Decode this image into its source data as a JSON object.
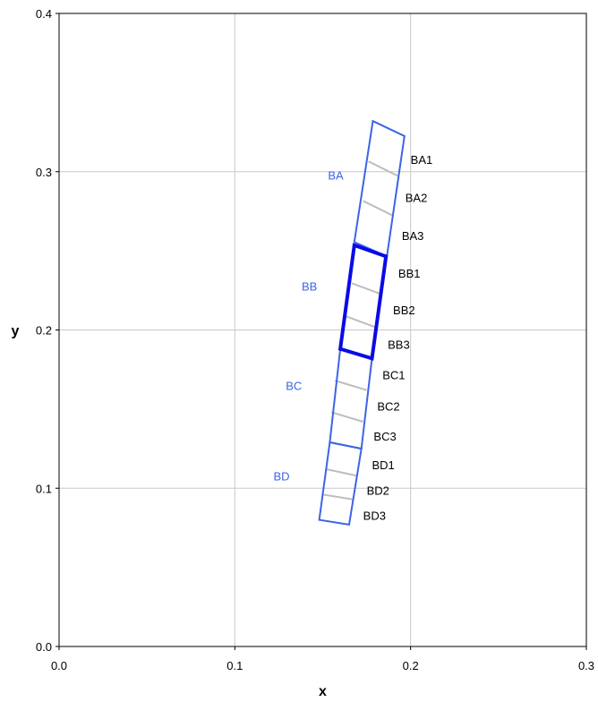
{
  "chart_data": {
    "type": "diagram-plot",
    "xlabel": "x",
    "ylabel": "y",
    "xlim": [
      0.0,
      0.3
    ],
    "ylim": [
      0.0,
      0.4
    ],
    "x_ticks": [
      "0.0",
      "0.1",
      "0.2",
      "0.3"
    ],
    "y_ticks": [
      "0.0",
      "0.1",
      "0.2",
      "0.3",
      "0.4"
    ],
    "grid": true,
    "colors": {
      "blue": "#3c64e6",
      "blue_bold": "#0a0ae6",
      "divider": "#bdbdbd",
      "grid": "#c8c8c8"
    },
    "groups": [
      {
        "name": "BA",
        "color": "#3c64e6",
        "label_pos": [
          0.153,
          0.295
        ],
        "bold": false,
        "outline": [
          [
            0.1785,
            0.332
          ],
          [
            0.1965,
            0.3225
          ],
          [
            0.1865,
            0.2465
          ],
          [
            0.168,
            0.2555
          ]
        ],
        "dividers": [
          [
            [
              0.176,
              0.3065
            ],
            [
              0.1925,
              0.2975
            ]
          ],
          [
            [
              0.173,
              0.2815
            ],
            [
              0.1895,
              0.2725
            ]
          ]
        ],
        "segments": [
          {
            "label": "BA1",
            "pos": [
              0.2,
              0.305
            ]
          },
          {
            "label": "BA2",
            "pos": [
              0.197,
              0.281
            ]
          },
          {
            "label": "BA3",
            "pos": [
              0.195,
              0.257
            ]
          }
        ]
      },
      {
        "name": "BB",
        "color": "#0a0ae6",
        "label_pos": [
          0.138,
          0.225
        ],
        "bold": true,
        "outline": [
          [
            0.168,
            0.2535
          ],
          [
            0.186,
            0.2465
          ],
          [
            0.178,
            0.182
          ],
          [
            0.16,
            0.188
          ]
        ],
        "dividers": [
          [
            [
              0.1665,
              0.2295
            ],
            [
              0.1835,
              0.2225
            ]
          ],
          [
            [
              0.1635,
              0.2085
            ],
            [
              0.1805,
              0.2015
            ]
          ]
        ],
        "segments": [
          {
            "label": "BB1",
            "pos": [
              0.193,
              0.233
            ]
          },
          {
            "label": "BB2",
            "pos": [
              0.19,
              0.21
            ]
          },
          {
            "label": "BB3",
            "pos": [
              0.187,
              0.188
            ]
          }
        ]
      },
      {
        "name": "BC",
        "color": "#3c64e6",
        "label_pos": [
          0.129,
          0.162
        ],
        "bold": false,
        "outline": [
          [
            0.16,
            0.188
          ],
          [
            0.178,
            0.182
          ],
          [
            0.172,
            0.125
          ],
          [
            0.154,
            0.129
          ]
        ],
        "dividers": [
          [
            [
              0.157,
              0.168
            ],
            [
              0.175,
              0.162
            ]
          ],
          [
            [
              0.155,
              0.148
            ],
            [
              0.173,
              0.142
            ]
          ]
        ],
        "segments": [
          {
            "label": "BC1",
            "pos": [
              0.184,
              0.169
            ]
          },
          {
            "label": "BC2",
            "pos": [
              0.181,
              0.149
            ]
          },
          {
            "label": "BC3",
            "pos": [
              0.179,
              0.13
            ]
          }
        ]
      },
      {
        "name": "BD",
        "color": "#3c64e6",
        "label_pos": [
          0.122,
          0.105
        ],
        "bold": false,
        "outline": [
          [
            0.154,
            0.129
          ],
          [
            0.172,
            0.125
          ],
          [
            0.165,
            0.077
          ],
          [
            0.148,
            0.08
          ]
        ],
        "dividers": [
          [
            [
              0.152,
              0.112
            ],
            [
              0.169,
              0.108
            ]
          ],
          [
            [
              0.15,
              0.096
            ],
            [
              0.167,
              0.093
            ]
          ]
        ],
        "segments": [
          {
            "label": "BD1",
            "pos": [
              0.178,
              0.112
            ]
          },
          {
            "label": "BD2",
            "pos": [
              0.175,
              0.096
            ]
          },
          {
            "label": "BD3",
            "pos": [
              0.173,
              0.08
            ]
          }
        ]
      }
    ]
  }
}
